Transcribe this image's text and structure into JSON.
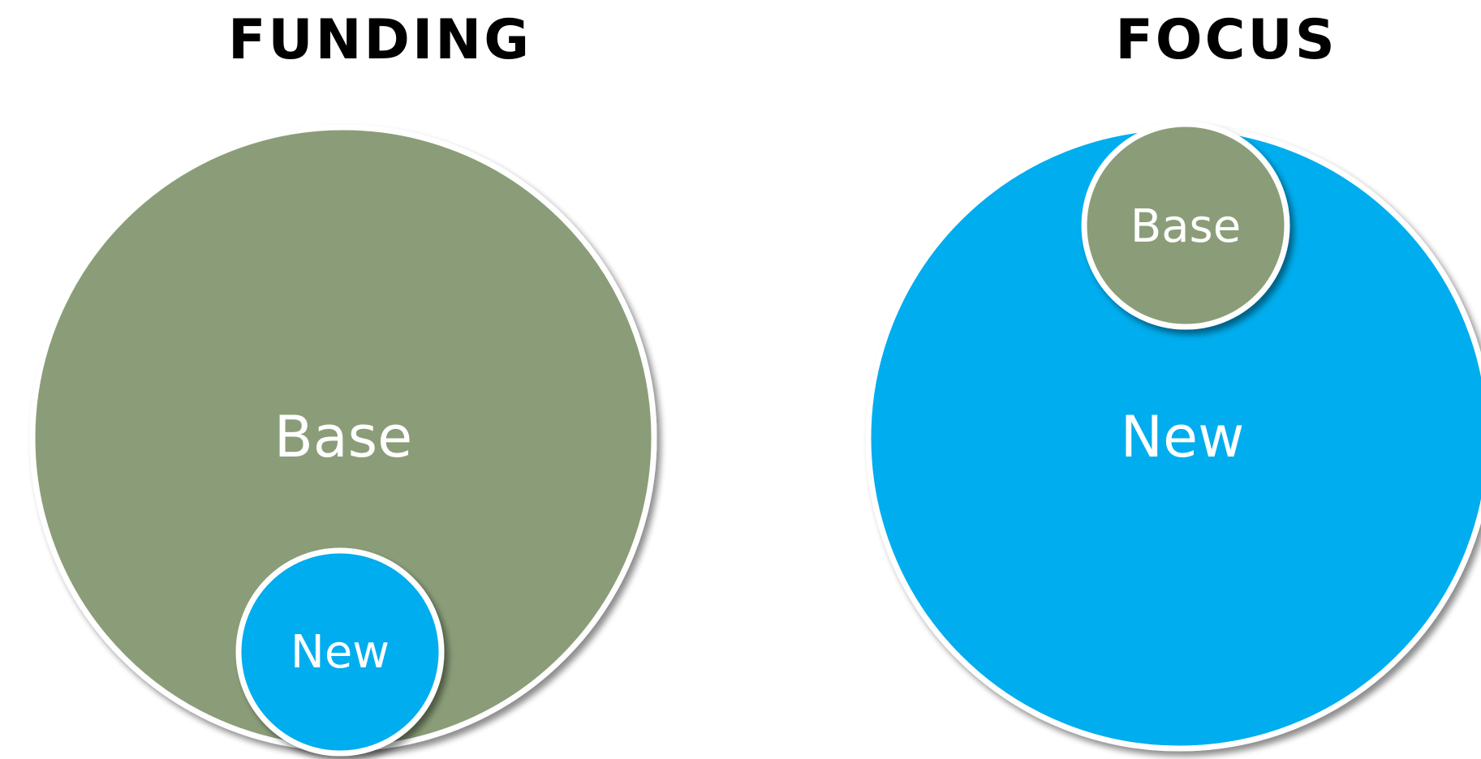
{
  "colors": {
    "base": "#8a9d78",
    "new": "#00adee",
    "outline": "#ffffff",
    "title": "#000000"
  },
  "funding": {
    "title": "FUNDING",
    "large_label": "Base",
    "small_label": "New"
  },
  "focus": {
    "title": "FOCUS",
    "large_label": "New",
    "small_label": "Base"
  }
}
